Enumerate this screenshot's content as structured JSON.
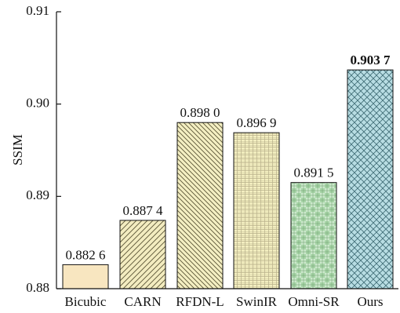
{
  "chart_data": {
    "type": "bar",
    "title": "",
    "xlabel": "",
    "ylabel": "SSIM",
    "ylim": [
      0.88,
      0.91
    ],
    "yticks": [
      "0.88",
      "0.89",
      "0.90",
      "0.91"
    ],
    "grid": false,
    "categories": [
      "Bicubic",
      "CARN",
      "RFDN-L",
      "SwinIR",
      "Omni-SR",
      "Ours"
    ],
    "values": [
      0.8826,
      0.8874,
      0.898,
      0.8969,
      0.8915,
      0.9037
    ],
    "value_labels": [
      "0.882 6",
      "0.887 4",
      "0.898 0",
      "0.896 9",
      "0.891 5",
      "0.903 7"
    ],
    "bar_colors": [
      "#f8e6c0",
      "#f3ecc0",
      "#f4efc2",
      "#f3eec0",
      "#cce8cc",
      "#b8dde3"
    ],
    "highlight": "Ours"
  }
}
